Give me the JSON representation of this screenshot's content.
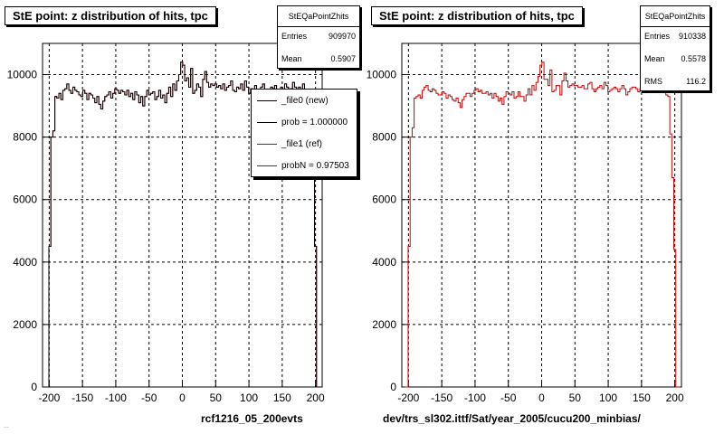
{
  "colors": {
    "new": "#000000",
    "ref": "#cc0000",
    "grid": "#000000"
  },
  "stamp": "...",
  "chart_data": [
    {
      "type": "line",
      "title": "StE point: z distribution of hits, tpc",
      "xlabel": "rcf1216_05_200evts",
      "xlim": [
        -210,
        210
      ],
      "ylim": [
        0,
        11000
      ],
      "xticks": [
        -200,
        -150,
        -100,
        -50,
        0,
        50,
        100,
        150,
        200
      ],
      "yticks": [
        0,
        2000,
        4000,
        6000,
        8000,
        10000
      ],
      "stats": {
        "name": "StEQaPointZhits",
        "rows": [
          {
            "label": "Entries",
            "value": "909970"
          },
          {
            "label": "Mean",
            "value": "0.5907"
          }
        ]
      },
      "legend": [
        {
          "label": "_file0 (new)",
          "color": "#000000"
        },
        {
          "label": "prob = 1.000000",
          "color": "#000000"
        },
        {
          "label": "_file1 (ref)",
          "color": "#cc0000"
        },
        {
          "label": "probN = 0.97503",
          "color": "#cc0000"
        }
      ],
      "series": [
        {
          "name": "_file1 (ref)",
          "bin_width": 3,
          "x": [
            -205,
            -202,
            -199,
            -196,
            -193,
            -190,
            -187,
            -184,
            -181,
            -178,
            -175,
            -172,
            -169,
            -166,
            -163,
            -160,
            -157,
            -154,
            -151,
            -148,
            -145,
            -142,
            -139,
            -136,
            -133,
            -130,
            -127,
            -124,
            -121,
            -118,
            -115,
            -112,
            -109,
            -106,
            -103,
            -100,
            -97,
            -94,
            -91,
            -88,
            -85,
            -82,
            -79,
            -76,
            -73,
            -70,
            -67,
            -64,
            -61,
            -58,
            -55,
            -52,
            -49,
            -46,
            -43,
            -40,
            -37,
            -34,
            -31,
            -28,
            -25,
            -22,
            -19,
            -16,
            -13,
            -10,
            -7,
            -4,
            -1,
            2,
            5,
            8,
            11,
            14,
            17,
            20,
            23,
            26,
            29,
            32,
            35,
            38,
            41,
            44,
            47,
            50,
            53,
            56,
            59,
            62,
            65,
            68,
            71,
            74,
            77,
            80,
            83,
            86,
            89,
            92,
            95,
            98,
            101,
            104,
            107,
            110,
            113,
            116,
            119,
            122,
            125,
            128,
            131,
            134,
            137,
            140,
            143,
            146,
            149,
            152,
            155,
            158,
            161,
            164,
            167,
            170,
            173,
            176,
            179,
            182,
            185,
            188,
            191,
            194,
            197,
            200,
            203,
            206
          ],
          "values": [
            0,
            0,
            4500,
            8000,
            8200,
            9300,
            9250,
            9400,
            9200,
            9500,
            9550,
            9700,
            9500,
            9400,
            9600,
            9500,
            9450,
            9350,
            9300,
            9500,
            9400,
            9200,
            9400,
            9350,
            9250,
            9100,
            9300,
            9050,
            8900,
            9150,
            9300,
            9350,
            9450,
            9250,
            9400,
            9550,
            9500,
            9400,
            9500,
            9450,
            9350,
            9500,
            9300,
            9400,
            9200,
            9450,
            9350,
            9100,
            9300,
            9000,
            9300,
            9500,
            9350,
            9400,
            9450,
            9200,
            9300,
            9500,
            9250,
            9350,
            9100,
            9400,
            9600,
            9300,
            9700,
            9500,
            9800,
            10000,
            10400,
            10300,
            9800,
            9900,
            9600,
            10200,
            9400,
            9500,
            9700,
            9600,
            9300,
            9850,
            10100,
            9750,
            9600,
            9700,
            9650,
            9700,
            9600,
            9650,
            9550,
            9700,
            9500,
            9600,
            9650,
            9800,
            9500,
            9450,
            9600,
            9550,
            9700,
            9500,
            9800,
            9600,
            9400,
            9550,
            9500,
            9650,
            9500,
            9400,
            9600,
            9700,
            9500,
            9300,
            9450,
            9600,
            9550,
            9650,
            9500,
            9400,
            9600,
            9500,
            9700,
            9600,
            9450,
            9550,
            9750,
            9600,
            9400,
            9600,
            9500,
            9700,
            9400,
            9300,
            9250,
            8200,
            6800,
            4500,
            0,
            0
          ]
        },
        {
          "name": "_file0 (new)",
          "bin_width": 3,
          "x": [
            -205,
            -202,
            -199,
            -196,
            -193,
            -190,
            -187,
            -184,
            -181,
            -178,
            -175,
            -172,
            -169,
            -166,
            -163,
            -160,
            -157,
            -154,
            -151,
            -148,
            -145,
            -142,
            -139,
            -136,
            -133,
            -130,
            -127,
            -124,
            -121,
            -118,
            -115,
            -112,
            -109,
            -106,
            -103,
            -100,
            -97,
            -94,
            -91,
            -88,
            -85,
            -82,
            -79,
            -76,
            -73,
            -70,
            -67,
            -64,
            -61,
            -58,
            -55,
            -52,
            -49,
            -46,
            -43,
            -40,
            -37,
            -34,
            -31,
            -28,
            -25,
            -22,
            -19,
            -16,
            -13,
            -10,
            -7,
            -4,
            -1,
            2,
            5,
            8,
            11,
            14,
            17,
            20,
            23,
            26,
            29,
            32,
            35,
            38,
            41,
            44,
            47,
            50,
            53,
            56,
            59,
            62,
            65,
            68,
            71,
            74,
            77,
            80,
            83,
            86,
            89,
            92,
            95,
            98,
            101,
            104,
            107,
            110,
            113,
            116,
            119,
            122,
            125,
            128,
            131,
            134,
            137,
            140,
            143,
            146,
            149,
            152,
            155,
            158,
            161,
            164,
            167,
            170,
            173,
            176,
            179,
            182,
            185,
            188,
            191,
            194,
            197,
            200,
            203,
            206
          ],
          "values": [
            0,
            0,
            4500,
            8000,
            8200,
            9300,
            9250,
            9400,
            9200,
            9500,
            9550,
            9700,
            9500,
            9400,
            9600,
            9500,
            9450,
            9350,
            9300,
            9500,
            9400,
            9200,
            9400,
            9350,
            9250,
            9100,
            9300,
            9050,
            8900,
            9150,
            9300,
            9350,
            9450,
            9250,
            9400,
            9550,
            9500,
            9400,
            9500,
            9450,
            9350,
            9500,
            9300,
            9400,
            9200,
            9450,
            9350,
            9100,
            9300,
            9000,
            9300,
            9500,
            9350,
            9400,
            9450,
            9200,
            9300,
            9500,
            9250,
            9350,
            9100,
            9400,
            9600,
            9300,
            9700,
            9500,
            9800,
            10000,
            10400,
            10300,
            9800,
            9900,
            9600,
            10200,
            9400,
            9500,
            9700,
            9600,
            9300,
            9850,
            10100,
            9750,
            9600,
            9700,
            9650,
            9700,
            9600,
            9650,
            9550,
            9700,
            9500,
            9600,
            9650,
            9800,
            9500,
            9450,
            9600,
            9550,
            9700,
            9500,
            9800,
            9600,
            9400,
            9550,
            9500,
            9650,
            9500,
            9400,
            9600,
            9700,
            9500,
            9300,
            9450,
            9600,
            9550,
            9650,
            9500,
            9400,
            9600,
            9500,
            9700,
            9600,
            9450,
            9550,
            9750,
            9600,
            9400,
            9600,
            9500,
            9700,
            9400,
            9300,
            9250,
            8200,
            6800,
            4500,
            0,
            0
          ]
        }
      ]
    },
    {
      "type": "line",
      "title": "StE point: z distribution of hits, tpc",
      "xlabel": "dev/trs_sl302.ittf/Sat/year_2005/cucu200_minbias/",
      "xlim": [
        -210,
        210
      ],
      "ylim": [
        0,
        11000
      ],
      "xticks": [
        -200,
        -150,
        -100,
        -50,
        0,
        50,
        100,
        150,
        200
      ],
      "yticks": [
        0,
        2000,
        4000,
        6000,
        8000,
        10000
      ],
      "stats": {
        "name": "StEQaPointZhits",
        "rows": [
          {
            "label": "Entries",
            "value": "910338"
          },
          {
            "label": "Mean",
            "value": "0.5578"
          },
          {
            "label": "RMS",
            "value": "116.2"
          }
        ]
      },
      "legend": [],
      "series": [
        {
          "name": "",
          "bin_width": 3,
          "x": [
            -205,
            -202,
            -199,
            -196,
            -193,
            -190,
            -187,
            -184,
            -181,
            -178,
            -175,
            -172,
            -169,
            -166,
            -163,
            -160,
            -157,
            -154,
            -151,
            -148,
            -145,
            -142,
            -139,
            -136,
            -133,
            -130,
            -127,
            -124,
            -121,
            -118,
            -115,
            -112,
            -109,
            -106,
            -103,
            -100,
            -97,
            -94,
            -91,
            -88,
            -85,
            -82,
            -79,
            -76,
            -73,
            -70,
            -67,
            -64,
            -61,
            -58,
            -55,
            -52,
            -49,
            -46,
            -43,
            -40,
            -37,
            -34,
            -31,
            -28,
            -25,
            -22,
            -19,
            -16,
            -13,
            -10,
            -7,
            -4,
            -1,
            2,
            5,
            8,
            11,
            14,
            17,
            20,
            23,
            26,
            29,
            32,
            35,
            38,
            41,
            44,
            47,
            50,
            53,
            56,
            59,
            62,
            65,
            68,
            71,
            74,
            77,
            80,
            83,
            86,
            89,
            92,
            95,
            98,
            101,
            104,
            107,
            110,
            113,
            116,
            119,
            122,
            125,
            128,
            131,
            134,
            137,
            140,
            143,
            146,
            149,
            152,
            155,
            158,
            161,
            164,
            167,
            170,
            173,
            176,
            179,
            182,
            185,
            188,
            191,
            194,
            197,
            200,
            203,
            206
          ],
          "values": [
            0,
            0,
            4500,
            8000,
            8300,
            9250,
            9300,
            9350,
            9250,
            9500,
            9600,
            9650,
            9500,
            9450,
            9550,
            9500,
            9400,
            9350,
            9350,
            9450,
            9400,
            9250,
            9350,
            9300,
            9200,
            9150,
            9250,
            9100,
            8950,
            9200,
            9300,
            9400,
            9400,
            9300,
            9400,
            9500,
            9550,
            9450,
            9500,
            9400,
            9400,
            9450,
            9350,
            9400,
            9250,
            9400,
            9300,
            9150,
            9250,
            9050,
            9300,
            9450,
            9400,
            9350,
            9450,
            9250,
            9300,
            9450,
            9300,
            9300,
            9150,
            9350,
            9550,
            9350,
            9650,
            9500,
            9750,
            9950,
            10300,
            10400,
            9850,
            9850,
            9650,
            10150,
            9450,
            9500,
            9650,
            9650,
            9350,
            9800,
            10050,
            9800,
            9600,
            9650,
            9700,
            9650,
            9650,
            9600,
            9600,
            9650,
            9550,
            9550,
            9700,
            9750,
            9550,
            9450,
            9550,
            9600,
            9650,
            9550,
            9750,
            9650,
            9450,
            9500,
            9550,
            9600,
            9550,
            9450,
            9550,
            9650,
            9550,
            9350,
            9450,
            9550,
            9600,
            9600,
            9550,
            9450,
            9550,
            9550,
            9650,
            9600,
            9500,
            9500,
            9700,
            9650,
            9450,
            9550,
            9550,
            9650,
            9450,
            9350,
            9300,
            8100,
            6700,
            4400,
            0,
            0
          ]
        }
      ]
    }
  ]
}
